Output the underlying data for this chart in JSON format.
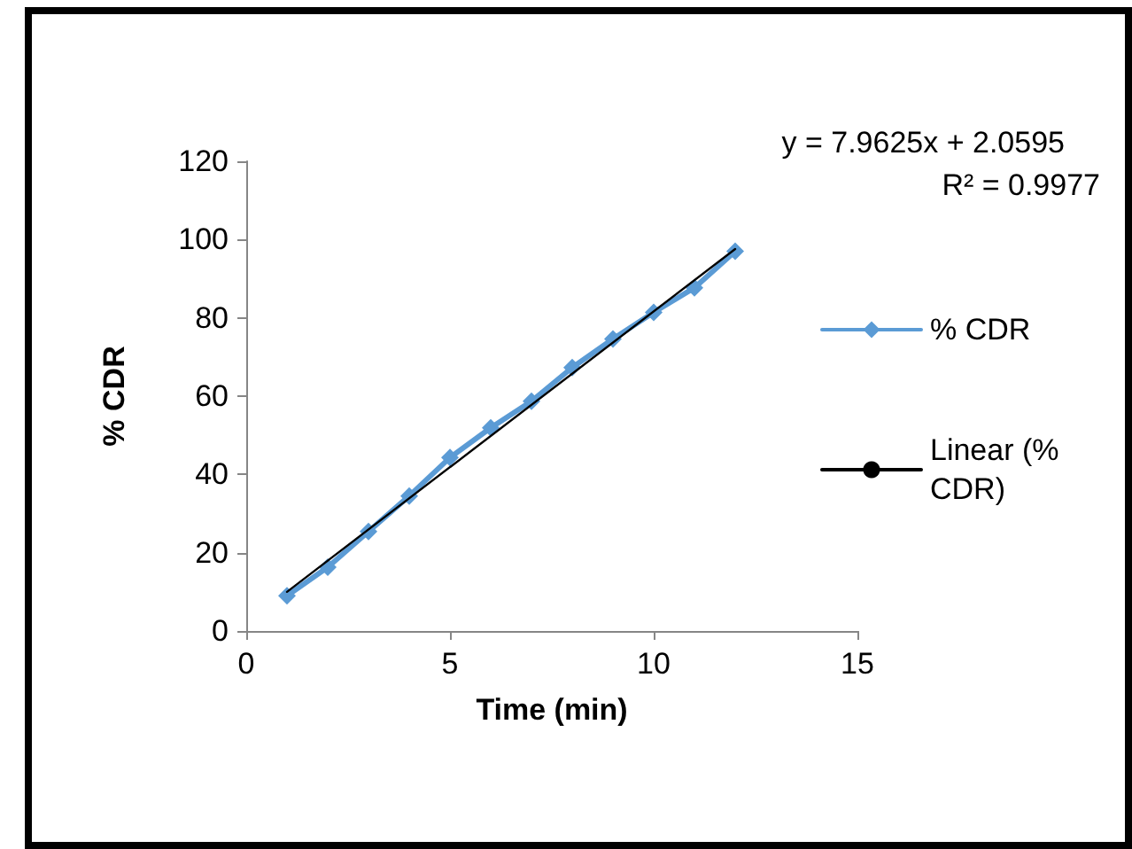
{
  "chart_data": {
    "type": "line",
    "xlabel": "Time (min)",
    "ylabel": "% CDR",
    "x": [
      1,
      2,
      3,
      4,
      5,
      6,
      7,
      8,
      9,
      10,
      11,
      12
    ],
    "series": [
      {
        "name": "% CDR",
        "color": "#5b9bd5",
        "marker": "diamond",
        "values": [
          9,
          16.3,
          25.4,
          34.5,
          44.3,
          51.9,
          58.7,
          67.3,
          74.6,
          81.4,
          87.7,
          97
        ]
      },
      {
        "name": "Linear (% CDR)",
        "type": "line",
        "color": "#000000",
        "marker": "none",
        "x": [
          1,
          12
        ],
        "values": [
          10,
          97.6
        ]
      }
    ],
    "annotations": [
      "y = 7.9625x + 2.0595",
      "R² = 0.9977"
    ],
    "xlim": [
      0,
      15
    ],
    "xticks": [
      0,
      5,
      10,
      15
    ],
    "ylim": [
      0,
      120
    ],
    "yticks": [
      0,
      20,
      40,
      60,
      80,
      100,
      120
    ],
    "grid": false,
    "legend": "right",
    "line_style": "solid"
  }
}
